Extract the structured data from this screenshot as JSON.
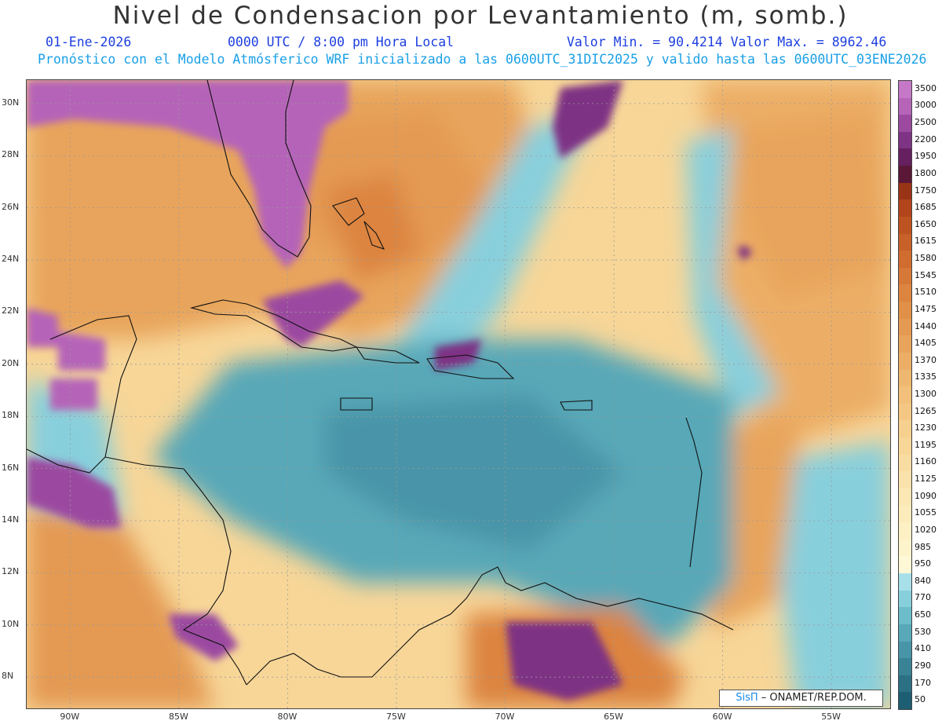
{
  "header": {
    "title": "Nivel de Condensacion por Levantamiento (m, somb.)",
    "date": "01-Ene-2026",
    "time": "0000 UTC / 8:00 pm Hora Local",
    "min_max": "Valor Min. = 90.4214  Valor Max. = 8962.46",
    "forecast": "Pronóstico con el Modelo Atmósferico WRF inicializado a las 0600UTC_31DIC2025 y valido hasta las  0600UTC_03ENE2026"
  },
  "map": {
    "lat_labels": [
      "30N",
      "28N",
      "26N",
      "24N",
      "22N",
      "20N",
      "18N",
      "16N",
      "14N",
      "12N",
      "10N",
      "8N"
    ],
    "lon_labels": [
      "90W",
      "85W",
      "80W",
      "75W",
      "70W",
      "65W",
      "60W",
      "55W"
    ],
    "lat_range": [
      6.8,
      30.9
    ],
    "lon_range": [
      -92,
      -52.3
    ]
  },
  "colorbar": {
    "levels": [
      "3500",
      "3000",
      "2500",
      "2200",
      "1950",
      "1800",
      "1750",
      "1685",
      "1650",
      "1615",
      "1580",
      "1545",
      "1510",
      "1475",
      "1440",
      "1405",
      "1370",
      "1335",
      "1300",
      "1265",
      "1230",
      "1195",
      "1160",
      "1125",
      "1090",
      "1055",
      "1020",
      "985",
      "950",
      "840",
      "770",
      "650",
      "530",
      "410",
      "290",
      "170",
      "50"
    ],
    "colors": [
      "#c678c8",
      "#b564b8",
      "#9b4aa0",
      "#7e3384",
      "#66205f",
      "#5a1836",
      "#9a3416",
      "#b2441c",
      "#be5322",
      "#c8602a",
      "#d06c30",
      "#d67838",
      "#dc8440",
      "#e09048",
      "#e49a52",
      "#e8a45c",
      "#ecae66",
      "#efb870",
      "#f2c07a",
      "#f4c884",
      "#f6d08e",
      "#f7d698",
      "#f9dca2",
      "#fae2ac",
      "#fbe8b4",
      "#fcecbc",
      "#fdf0c4",
      "#fef4cc",
      "#fef8d6",
      "#a8e0ea",
      "#88cfdc",
      "#6cbcca",
      "#58a8b8",
      "#4894a8",
      "#3a8296",
      "#2c7084",
      "#1e5e72"
    ]
  },
  "credit": {
    "brand": "SisΠ",
    "org": "– ONAMET/REP.DOM."
  }
}
